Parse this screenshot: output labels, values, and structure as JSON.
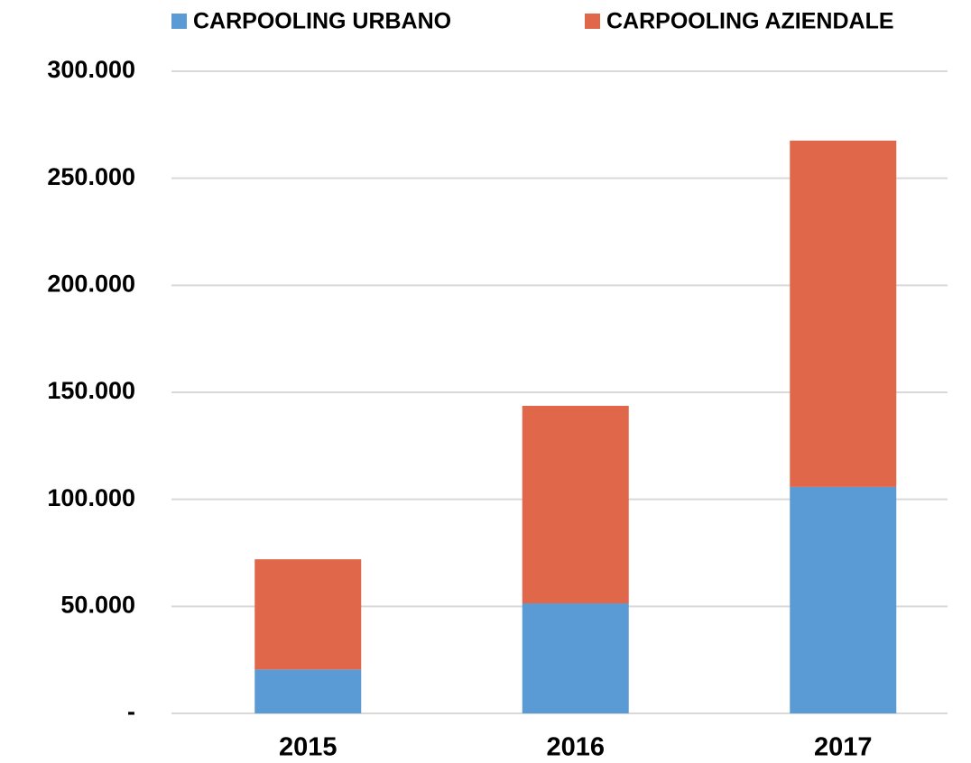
{
  "chart_data": {
    "type": "stacked_bar",
    "categories": [
      "2015",
      "2016",
      "2017"
    ],
    "series": [
      {
        "name": "CARPOOLING URBANO",
        "color": "#5b9bd5",
        "values": [
          20500,
          51400,
          105800
        ]
      },
      {
        "name": "CARPOOLING AZIENDALE",
        "color": "#e0674a",
        "values": [
          51500,
          92300,
          161800
        ]
      }
    ],
    "ylim": [
      0,
      300000
    ],
    "yticks": [
      {
        "value": 0,
        "label": "-"
      },
      {
        "value": 50000,
        "label": "50.000"
      },
      {
        "value": 100000,
        "label": "100.000"
      },
      {
        "value": 150000,
        "label": "150.000"
      },
      {
        "value": 200000,
        "label": "200.000"
      },
      {
        "value": 250000,
        "label": "250.000"
      },
      {
        "value": 300000,
        "label": "300.000"
      }
    ],
    "grid": true,
    "legend": "top"
  }
}
